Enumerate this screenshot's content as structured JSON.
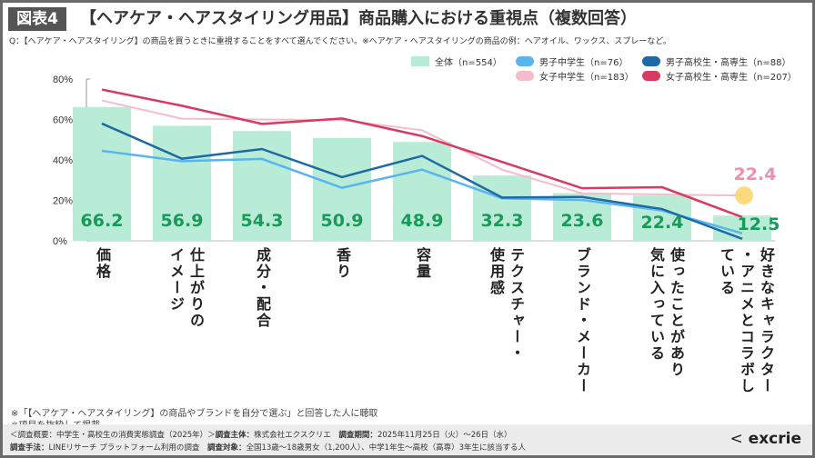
{
  "header": {
    "badge": "図表4",
    "title": "【ヘアケア・ヘアスタイリング用品】商品購入における重視点（複数回答）",
    "question": "Q：【ヘアケア・ヘアスタイリング】の商品を買うときに重視することをすべて選んでください。※ヘアケア・ヘアスタイリングの商品の例：ヘアオイル、ワックス、スプレーなど。"
  },
  "chart_data": {
    "type": "bar+line",
    "ylim": [
      0,
      80
    ],
    "yticks": [
      "0%",
      "20%",
      "40%",
      "60%",
      "80%"
    ],
    "ytick_values": [
      0,
      20,
      40,
      60,
      80
    ],
    "categories": [
      "価格",
      "仕上がりのイメージ",
      "成分・配合",
      "香り",
      "容量",
      "テクスチャー・使用感",
      "ブランド・メーカー",
      "使ったことがあり気に入っている",
      "好きなキャラクター・アニメとコラボしている"
    ],
    "category_lines": [
      [
        "価格"
      ],
      [
        "仕上がりの",
        "イメージ"
      ],
      [
        "成分・配合"
      ],
      [
        "香り"
      ],
      [
        "容量"
      ],
      [
        "テクスチャー・",
        "使用感"
      ],
      [
        "ブランド・メーカー"
      ],
      [
        "使ったことがあり",
        "気に入っている"
      ],
      [
        "好きなキャラクター",
        "・アニメとコラボし",
        "ている"
      ]
    ],
    "bar_series": {
      "name": "全体（n=554）",
      "color": "#b8ecd6",
      "label_color": "#1a9a5a",
      "values": [
        66.2,
        56.9,
        54.3,
        50.9,
        48.9,
        32.3,
        23.6,
        22.4,
        12.5
      ],
      "labels": [
        "66.2",
        "56.9",
        "54.3",
        "50.9",
        "48.9",
        "32.3",
        "23.6",
        "22.4",
        "12.5"
      ]
    },
    "line_series": [
      {
        "name": "男子中学生（n=76）",
        "color": "#5ab4ee",
        "values": [
          44.5,
          39.4,
          40.5,
          26.2,
          35.2,
          21.0,
          20.2,
          15.0,
          3.7
        ]
      },
      {
        "name": "男子高校生・高専生（n=88）",
        "color": "#1f6aa5",
        "values": [
          58.0,
          40.6,
          45.4,
          31.5,
          42.0,
          21.4,
          21.7,
          15.7,
          1.0
        ]
      },
      {
        "name": "女子中学生（n=183）",
        "color": "#f5bccb",
        "values": [
          69.4,
          60.4,
          60.0,
          59.7,
          54.7,
          35.2,
          23.5,
          22.9,
          22.4
        ]
      },
      {
        "name": "女子高校生・高専生（n=207）",
        "color": "#d83a62",
        "values": [
          74.8,
          66.8,
          57.8,
          60.5,
          51.8,
          39.0,
          26.0,
          26.5,
          11.7
        ]
      }
    ],
    "highlight": {
      "series": "女子中学生（n=183）",
      "category": "好きなキャラクター・アニメとコラボしている",
      "label": "22.4",
      "label_color": "#f08fa8",
      "marker_color": "#fcd36a"
    },
    "grid": false,
    "legend": "top-right"
  },
  "notes": [
    "※「【ヘアケア・ヘアスタイリング】の商品やブランドを自分で選ぶ」と回答した人に聴取",
    "※項目を抜粋して掲載"
  ],
  "footer": {
    "line1_a": "＜調査概要：中学生・高校生の消費実態調査（2025年）＞",
    "line1_b_label": "調査主体：",
    "line1_b": "株式会社エクスクリエ",
    "line1_c_label": "調査期間：",
    "line1_c": "2025年11月25日（火）～26日（水）",
    "line2_a_label": "調査手法：",
    "line2_a": "LINEリサーチ プラットフォーム利用の調査",
    "line2_b_label": "調査対象：",
    "line2_b": "全国13歳～18歳男女（1,200人）、中学1年生～高校（高専）3年生に該当する人",
    "logo": "excrie"
  }
}
